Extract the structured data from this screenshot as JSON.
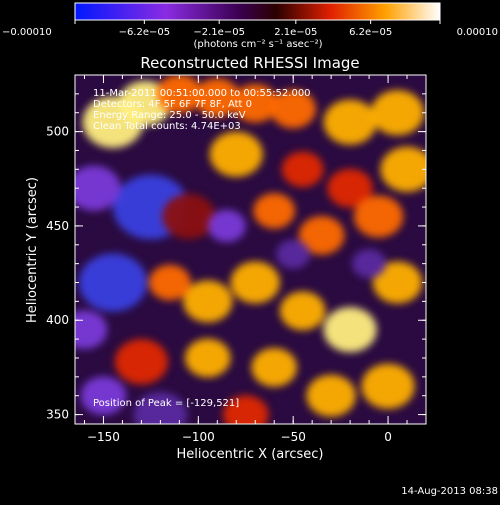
{
  "chart_data": {
    "type": "heatmap",
    "title": "Reconstructed RHESSI Image",
    "xlabel": "Heliocentric X (arcsec)",
    "ylabel": "Heliocentric Y (arcsec)",
    "xlim": [
      -165,
      20
    ],
    "ylim": [
      345,
      530
    ],
    "x_ticks": [
      {
        "value": -150,
        "label": "−150"
      },
      {
        "value": -100,
        "label": "−100"
      },
      {
        "value": -50,
        "label": "−50"
      },
      {
        "value": 0,
        "label": "0"
      }
    ],
    "y_ticks": [
      {
        "value": 350,
        "label": "350"
      },
      {
        "value": 400,
        "label": "400"
      },
      {
        "value": 450,
        "label": "450"
      },
      {
        "value": 500,
        "label": "500"
      }
    ],
    "colorbar": {
      "min": -0.0001,
      "max": 0.0001,
      "ticks": [
        {
          "value": -0.0001,
          "label": "−0.00010"
        },
        {
          "value": -6.2e-05,
          "label": "−6.2e−05"
        },
        {
          "value": -2.1e-05,
          "label": "−2.1e−05"
        },
        {
          "value": 2.1e-05,
          "label": "2.1e−05"
        },
        {
          "value": 6.2e-05,
          "label": "6.2e−05"
        },
        {
          "value": 0.0001,
          "label": "0.00010"
        }
      ],
      "unit_label": "(photons cm⁻² s⁻¹ asec⁻²)"
    },
    "annotations": [
      "11-Mar-2011 00:51:00.000 to 00:55:52.000",
      "Detectors: 4F 5F 6F 7F 8F, Att 0",
      "Energy Range: 25.0 - 50.0 keV",
      "Clean     Total counts: 4.74E+03"
    ],
    "peak_label": "Position of Peak = [-129,521]",
    "peak_position": [
      -129,
      521
    ],
    "timestamp": "14-Aug-2013 08:38",
    "blobs": [
      {
        "x": -145,
        "y": 505,
        "w": 16,
        "v": 0.85
      },
      {
        "x": -128,
        "y": 515,
        "w": 14,
        "v": 0.95
      },
      {
        "x": -110,
        "y": 520,
        "w": 12,
        "v": 0.6
      },
      {
        "x": -90,
        "y": 518,
        "w": 12,
        "v": 0.65
      },
      {
        "x": -70,
        "y": 515,
        "w": 12,
        "v": 0.55
      },
      {
        "x": -50,
        "y": 512,
        "w": 12,
        "v": 0.55
      },
      {
        "x": -20,
        "y": 505,
        "w": 14,
        "v": 0.75
      },
      {
        "x": 5,
        "y": 510,
        "w": 14,
        "v": 0.8
      },
      {
        "x": 10,
        "y": 480,
        "w": 14,
        "v": 0.7
      },
      {
        "x": -20,
        "y": 470,
        "w": 12,
        "v": 0.5
      },
      {
        "x": -45,
        "y": 480,
        "w": 11,
        "v": 0.45
      },
      {
        "x": -80,
        "y": 488,
        "w": 14,
        "v": 0.7
      },
      {
        "x": -60,
        "y": 458,
        "w": 11,
        "v": 0.6
      },
      {
        "x": -35,
        "y": 445,
        "w": 12,
        "v": 0.65
      },
      {
        "x": -5,
        "y": 455,
        "w": 13,
        "v": 0.6
      },
      {
        "x": 5,
        "y": 420,
        "w": 13,
        "v": 0.75
      },
      {
        "x": -20,
        "y": 395,
        "w": 14,
        "v": 0.85
      },
      {
        "x": -45,
        "y": 405,
        "w": 12,
        "v": 0.7
      },
      {
        "x": -70,
        "y": 420,
        "w": 13,
        "v": 0.7
      },
      {
        "x": -95,
        "y": 410,
        "w": 13,
        "v": 0.8
      },
      {
        "x": -115,
        "y": 420,
        "w": 11,
        "v": 0.55
      },
      {
        "x": -95,
        "y": 380,
        "w": 12,
        "v": 0.7
      },
      {
        "x": -60,
        "y": 375,
        "w": 12,
        "v": 0.75
      },
      {
        "x": -30,
        "y": 360,
        "w": 13,
        "v": 0.8
      },
      {
        "x": 0,
        "y": 365,
        "w": 14,
        "v": 0.75
      },
      {
        "x": -130,
        "y": 378,
        "w": 14,
        "v": 0.5
      },
      {
        "x": -150,
        "y": 360,
        "w": 12,
        "v": -0.4
      },
      {
        "x": -145,
        "y": 420,
        "w": 18,
        "v": -0.6
      },
      {
        "x": -125,
        "y": 460,
        "w": 20,
        "v": -0.7
      },
      {
        "x": -105,
        "y": 455,
        "w": 14,
        "v": 0.35
      },
      {
        "x": -85,
        "y": 450,
        "w": 10,
        "v": -0.4
      },
      {
        "x": -155,
        "y": 470,
        "w": 14,
        "v": -0.5
      },
      {
        "x": -120,
        "y": 350,
        "w": 14,
        "v": -0.3
      },
      {
        "x": -75,
        "y": 350,
        "w": 12,
        "v": 0.45
      },
      {
        "x": -50,
        "y": 435,
        "w": 9,
        "v": -0.3
      },
      {
        "x": -10,
        "y": 430,
        "w": 9,
        "v": -0.25
      },
      {
        "x": -160,
        "y": 395,
        "w": 12,
        "v": -0.5
      }
    ]
  }
}
